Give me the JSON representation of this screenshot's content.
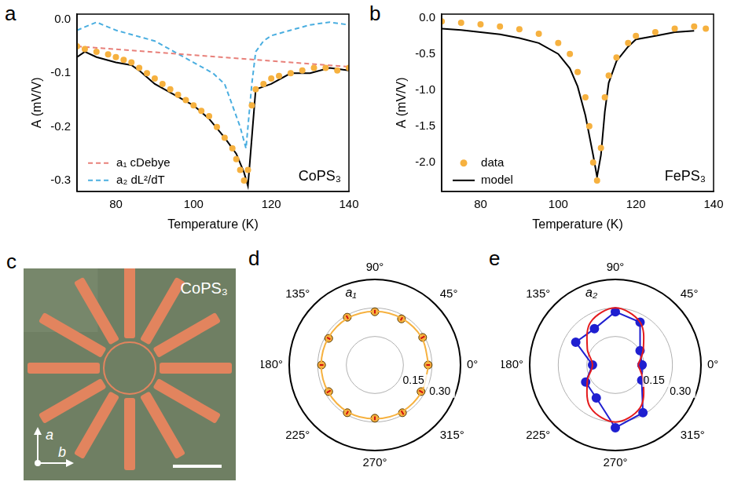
{
  "chart_data": [
    {
      "panel": "a",
      "type": "line",
      "xlabel": "Temperature (K)",
      "ylabel": "A (mV/V)",
      "annotation": "CoPS₃",
      "xlim": [
        70,
        140
      ],
      "xticks": [
        80,
        100,
        120,
        140
      ],
      "ylim": [
        -0.32,
        0.01
      ],
      "yticks": [
        -0.3,
        -0.2,
        -0.1,
        {
          "value": 0,
          "label": "0.0"
        }
      ],
      "grid": false,
      "legend": "lower left",
      "series": [
        {
          "type": "scatter",
          "marker": "circle",
          "color": "#f6b13f",
          "x": [
            70,
            72,
            75,
            78,
            80,
            82,
            84,
            86,
            88,
            90,
            92,
            94,
            96,
            98,
            100,
            102,
            104,
            106,
            108,
            110,
            111,
            112,
            113,
            114,
            115,
            116,
            118,
            120,
            122,
            125,
            128,
            131,
            134,
            137,
            140
          ],
          "values": [
            -0.05,
            -0.055,
            -0.06,
            -0.065,
            -0.07,
            -0.075,
            -0.08,
            -0.09,
            -0.1,
            -0.11,
            -0.12,
            -0.13,
            -0.14,
            -0.15,
            -0.16,
            -0.17,
            -0.18,
            -0.2,
            -0.22,
            -0.24,
            -0.26,
            -0.28,
            -0.3,
            -0.28,
            -0.16,
            -0.13,
            -0.12,
            -0.11,
            -0.105,
            -0.1,
            -0.095,
            -0.09,
            -0.09,
            -0.095,
            -0.09
          ]
        },
        {
          "type": "line",
          "line_style": "solid",
          "color": "#000000",
          "x": [
            70,
            72,
            75,
            80,
            84,
            86,
            90,
            95,
            100,
            104,
            108,
            111,
            113,
            114,
            115,
            116,
            118,
            120,
            125,
            130,
            135,
            140
          ],
          "values": [
            -0.07,
            -0.06,
            -0.07,
            -0.08,
            -0.085,
            -0.095,
            -0.12,
            -0.14,
            -0.16,
            -0.185,
            -0.22,
            -0.25,
            -0.285,
            -0.31,
            -0.22,
            -0.13,
            -0.125,
            -0.12,
            -0.1,
            -0.1,
            -0.09,
            -0.095
          ]
        },
        {
          "name": "a₁ cDebye",
          "type": "line",
          "line_style": "dashed",
          "color": "#e8807a",
          "x": [
            70,
            140
          ],
          "values": [
            -0.05,
            -0.088
          ]
        },
        {
          "name": "a₂ dL²/dT",
          "type": "line",
          "line_style": "dashed",
          "color": "#4aaee0",
          "x": [
            70,
            75,
            80,
            85,
            90,
            95,
            100,
            105,
            108,
            110,
            112,
            113.5,
            115,
            116,
            118,
            120,
            125,
            130,
            135,
            140
          ],
          "values": [
            -0.02,
            -0.005,
            -0.02,
            -0.03,
            -0.04,
            -0.06,
            -0.08,
            -0.1,
            -0.12,
            -0.16,
            -0.2,
            -0.24,
            -0.12,
            -0.06,
            -0.04,
            -0.03,
            -0.02,
            -0.01,
            -0.005,
            -0.01
          ]
        }
      ]
    },
    {
      "panel": "b",
      "type": "line",
      "xlabel": "Temperature (K)",
      "ylabel": "A (mV/V)",
      "annotation": "FePS₃",
      "xlim": [
        70,
        140
      ],
      "xticks": [
        80,
        100,
        120,
        140
      ],
      "ylim": [
        -2.4,
        0.05
      ],
      "yticks": [
        {
          "value": -2,
          "label": "-2.0"
        },
        -1.5,
        {
          "value": -1,
          "label": "-1.0"
        },
        -0.5,
        {
          "value": 0,
          "label": "0.0"
        }
      ],
      "grid": false,
      "legend": "lower left",
      "series": [
        {
          "name": "data",
          "type": "scatter",
          "marker": "circle",
          "color": "#f6b13f",
          "x": [
            70,
            75,
            80,
            85,
            90,
            95,
            100,
            103,
            105,
            107,
            108,
            109,
            110,
            111,
            112,
            113,
            115,
            118,
            120,
            125,
            130,
            135,
            138
          ],
          "values": [
            -0.05,
            -0.07,
            -0.09,
            -0.12,
            -0.16,
            -0.22,
            -0.35,
            -0.5,
            -0.75,
            -1.1,
            -1.5,
            -2.0,
            -2.25,
            -1.8,
            -1.1,
            -0.8,
            -0.55,
            -0.35,
            -0.25,
            -0.2,
            -0.15,
            -0.12,
            -0.15
          ]
        },
        {
          "name": "model",
          "type": "line",
          "line_style": "solid",
          "color": "#000000",
          "x": [
            70,
            75,
            80,
            85,
            90,
            95,
            100,
            103,
            105,
            107,
            109,
            110,
            111,
            112,
            113,
            115,
            118,
            120,
            125,
            130,
            135
          ],
          "values": [
            -0.15,
            -0.17,
            -0.2,
            -0.23,
            -0.28,
            -0.35,
            -0.5,
            -0.7,
            -0.95,
            -1.35,
            -1.9,
            -2.2,
            -1.9,
            -1.3,
            -0.9,
            -0.6,
            -0.4,
            -0.3,
            -0.25,
            -0.2,
            -0.18
          ]
        }
      ]
    },
    {
      "panel": "d",
      "type": "polar",
      "title": "a₁",
      "rlim": [
        0,
        0.45
      ],
      "rticks": [
        {
          "value": 0.15,
          "label": "0.15"
        },
        {
          "value": 0.3,
          "label": "0.30"
        }
      ],
      "angle_ticks": [
        {
          "value": 0,
          "label": "0°"
        },
        {
          "value": 45,
          "label": "45°"
        },
        {
          "value": 90,
          "label": "90°"
        },
        {
          "value": 135,
          "label": "135°"
        },
        {
          "value": 180,
          "label": "180°"
        },
        {
          "value": 225,
          "label": "225°"
        },
        {
          "value": 270,
          "label": "270°"
        },
        {
          "value": 315,
          "label": "315°"
        }
      ],
      "grid": true,
      "series": [
        {
          "type": "line",
          "line_style": "solid",
          "color": "#f6b13f",
          "x": [
            0,
            30,
            60,
            90,
            120,
            150,
            180,
            210,
            240,
            270,
            300,
            330
          ],
          "values": [
            0.283,
            0.285,
            0.283,
            0.282,
            0.284,
            0.283,
            0.282,
            0.283,
            0.285,
            0.283,
            0.284,
            0.283
          ]
        },
        {
          "type": "scatter",
          "marker": "circle",
          "color": "#f6b13f",
          "x": [
            0,
            30,
            60,
            90,
            120,
            150,
            180,
            210,
            240,
            270,
            300,
            330
          ],
          "values": [
            0.28,
            0.29,
            0.28,
            0.28,
            0.29,
            0.28,
            0.28,
            0.28,
            0.29,
            0.28,
            0.29,
            0.28
          ],
          "errors": [
            0.01,
            0.012,
            0.01,
            0.01,
            0.01,
            0.01,
            0.01,
            0.012,
            0.01,
            0.01,
            0.012,
            0.012
          ]
        }
      ]
    },
    {
      "panel": "e",
      "type": "polar",
      "title": "a₂",
      "rlim": [
        0,
        0.45
      ],
      "rticks": [
        {
          "value": 0.15,
          "label": "0.15"
        },
        {
          "value": 0.3,
          "label": "0.30"
        }
      ],
      "angle_ticks": [
        {
          "value": 0,
          "label": "0°"
        },
        {
          "value": 45,
          "label": "45°"
        },
        {
          "value": 90,
          "label": "90°"
        },
        {
          "value": 135,
          "label": "135°"
        },
        {
          "value": 180,
          "label": "180°"
        },
        {
          "value": 225,
          "label": "225°"
        },
        {
          "value": 270,
          "label": "270°"
        },
        {
          "value": 315,
          "label": "315°"
        }
      ],
      "grid": true,
      "series": [
        {
          "type": "line",
          "line_style": "solid",
          "color": "#e41a1c",
          "x": [
            0,
            30,
            60,
            90,
            120,
            150,
            180,
            210,
            240,
            270,
            300,
            330
          ],
          "values": [
            0.12,
            0.17,
            0.26,
            0.3,
            0.26,
            0.17,
            0.12,
            0.17,
            0.26,
            0.3,
            0.26,
            0.17
          ]
        },
        {
          "type": "line",
          "marker": "circle",
          "line_style": "solid",
          "color": "#1f1fd0",
          "x": [
            0,
            30,
            60,
            90,
            120,
            150,
            180,
            210,
            240,
            270,
            300,
            330
          ],
          "values": [
            0.14,
            0.15,
            0.26,
            0.28,
            0.22,
            0.24,
            0.12,
            0.18,
            0.2,
            0.33,
            0.29,
            0.16
          ]
        }
      ]
    }
  ],
  "image_panel": {
    "panel": "c",
    "label": "CoPS₃",
    "axis_labels": [
      "a",
      "b"
    ]
  }
}
